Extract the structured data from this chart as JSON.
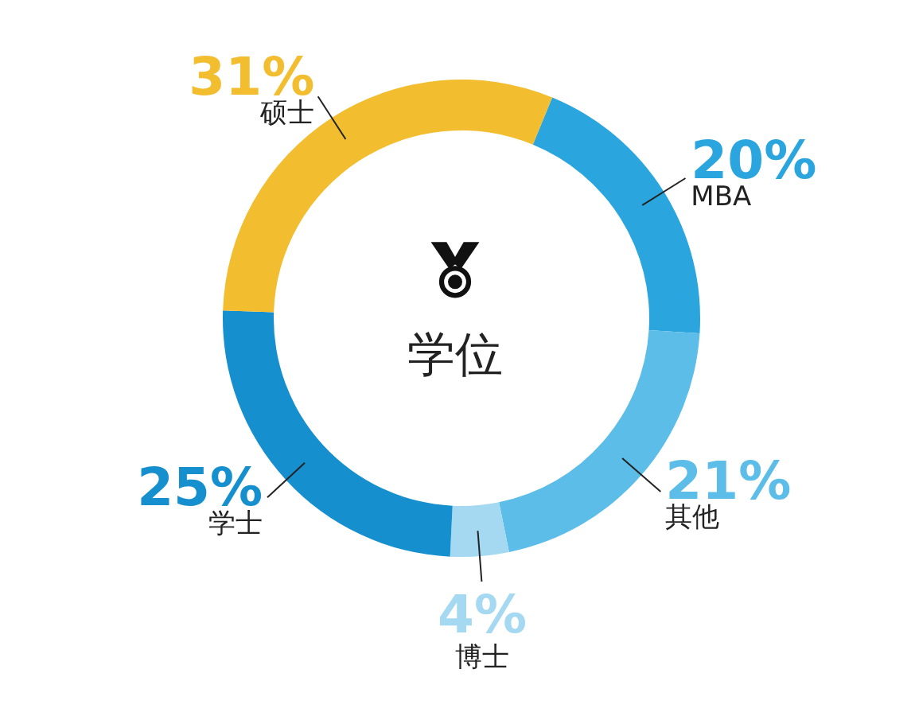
{
  "chart_data": {
    "type": "donut",
    "title": "学位",
    "categories": [
      "MBA",
      "其他",
      "博士",
      "学士",
      "硕士"
    ],
    "values": [
      20,
      21,
      4,
      25,
      31
    ],
    "value_labels": [
      "20%",
      "21%",
      "4%",
      "25%",
      "31%"
    ],
    "colors": [
      "#2aa5de",
      "#5cbde8",
      "#a5d9f2",
      "#168fcf",
      "#f2bd2f"
    ]
  }
}
